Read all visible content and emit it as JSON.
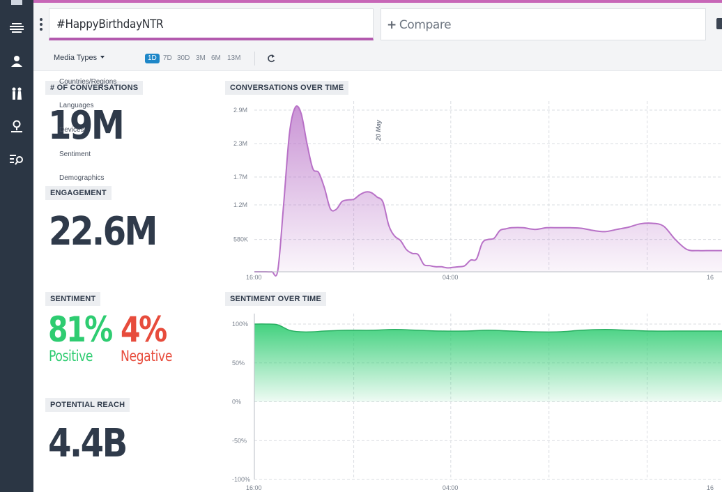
{
  "colors": {
    "sidebar": "#2b3644",
    "accent": "#b35aae",
    "conversation_line": "#b871c7",
    "sentiment_fill": "#2ecc71",
    "negative": "#e74c3c",
    "active_range": "#1e87c8"
  },
  "sidebar": {
    "items": [
      {
        "icon": "dashboard-icon"
      },
      {
        "icon": "stream-icon"
      },
      {
        "icon": "user-profile-icon"
      },
      {
        "icon": "demographics-icon"
      },
      {
        "icon": "location-icon"
      },
      {
        "icon": "search-list-icon"
      }
    ]
  },
  "header": {
    "query": "#HappyBirthdayNTR",
    "compare_label": "Compare",
    "compare_icon": "plus-icon"
  },
  "filters": {
    "media_types_label": "Media Types",
    "ranges": [
      "1D",
      "7D",
      "30D",
      "3M",
      "6M",
      "13M"
    ],
    "active_range": "1D",
    "refresh_icon": "refresh-icon"
  },
  "dropdown": {
    "items": [
      "Countries/Regions",
      "Languages",
      "Devices",
      "Sentiment",
      "Demographics"
    ]
  },
  "stats": {
    "conversations": {
      "label": "# OF CONVERSATIONS",
      "value": "19M"
    },
    "engagement": {
      "label": "ENGAGEMENT",
      "value": "22.6M"
    },
    "sentiment": {
      "label": "SENTIMENT",
      "positive_value": "81%",
      "positive_label": "Positive",
      "negative_value": "4%",
      "negative_label": "Negative"
    },
    "reach": {
      "label": "POTENTIAL REACH",
      "value": "4.4B"
    }
  },
  "chart_data": [
    {
      "type": "area",
      "title": "CONVERSATIONS OVER TIME",
      "y_tick_labels": [
        "2.9M",
        "2.3M",
        "1.7M",
        "1.2M",
        "580K"
      ],
      "y_ticks": [
        2900000,
        2300000,
        1700000,
        1200000,
        580000
      ],
      "ylim": [
        0,
        3000000
      ],
      "x_tick_labels": [
        "16:00",
        "04:00",
        "16"
      ],
      "annotation": "20 May",
      "grid": true,
      "x": [
        0,
        1,
        1.5,
        2,
        2.5,
        3,
        3.5,
        4,
        4.5,
        5,
        5.5,
        6,
        6.5,
        7,
        7.5,
        8,
        8.5,
        9,
        9.5,
        10,
        10.5,
        11,
        11.5,
        12,
        12.5,
        13,
        13.5,
        14,
        14.5,
        15,
        15.5,
        16,
        16.5,
        17,
        17.5,
        18,
        18.5,
        19,
        19.5,
        20,
        20.5,
        21,
        21.5,
        22,
        23,
        24,
        25,
        26,
        27,
        28,
        29,
        30,
        31,
        32,
        33,
        34,
        35,
        36,
        37,
        38,
        39,
        40
      ],
      "values": [
        0,
        0,
        0,
        20000,
        1200000,
        2480000,
        2950000,
        2840000,
        2300000,
        1850000,
        1780000,
        1500000,
        1130000,
        1120000,
        1260000,
        1290000,
        1300000,
        1380000,
        1430000,
        1420000,
        1340000,
        1250000,
        830000,
        640000,
        560000,
        400000,
        330000,
        310000,
        130000,
        110000,
        90000,
        90000,
        70000,
        80000,
        90000,
        110000,
        210000,
        230000,
        520000,
        580000,
        600000,
        740000,
        770000,
        790000,
        790000,
        760000,
        790000,
        790000,
        790000,
        780000,
        740000,
        720000,
        760000,
        800000,
        860000,
        870000,
        820000,
        580000,
        400000,
        380000,
        380000,
        380000
      ]
    },
    {
      "type": "area",
      "title": "SENTIMENT OVER TIME",
      "y_tick_labels": [
        "100%",
        "50%",
        "0%",
        "-50%",
        "-100%"
      ],
      "y_ticks": [
        100,
        50,
        0,
        -50,
        -100
      ],
      "ylim": [
        -100,
        100
      ],
      "x_tick_labels": [
        "16:00",
        "04:00",
        "16"
      ],
      "grid": true,
      "x": [
        0,
        1,
        2,
        3,
        4,
        5,
        6,
        8,
        10,
        12,
        14,
        16,
        18,
        20,
        22,
        24,
        26,
        28,
        30,
        32,
        34,
        36,
        38,
        40
      ],
      "values": [
        100,
        100,
        99,
        92,
        90,
        90,
        91,
        92,
        92,
        93,
        92,
        91,
        91,
        92,
        91,
        90,
        90,
        92,
        93,
        92,
        91,
        91,
        91,
        91
      ]
    }
  ]
}
